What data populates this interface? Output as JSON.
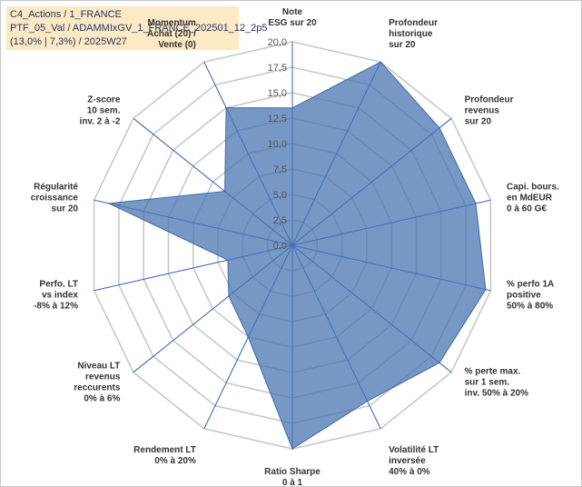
{
  "header": {
    "line1": "C4_Actions / 1_FRANCE",
    "line2": "PTF_05_Val / ADAMMIxGV_1_FRANCE_202501_12_2p5",
    "line3": "(13,0% | 7,3%) / 2025W27"
  },
  "chart_data": {
    "type": "radar",
    "title": "",
    "rmin": 0,
    "rmax": 20,
    "tick_step": 2.5,
    "tick_labels": [
      "0,0",
      "2,5",
      "5,0",
      "7,5",
      "10,0",
      "12,5",
      "15,0",
      "17,5",
      "20,0"
    ],
    "grid": true,
    "axes": [
      {
        "label": [
          "Note",
          "ESG sur 20"
        ]
      },
      {
        "label": [
          "Profondeur",
          "historique",
          "sur 20"
        ]
      },
      {
        "label": [
          "Profondeur",
          "revenus",
          "sur 20"
        ]
      },
      {
        "label": [
          "Capi. bours.",
          "en MdEUR",
          "0 à 60 G€"
        ]
      },
      {
        "label": [
          "% perfo 1A",
          "positive",
          "50% à 80%"
        ]
      },
      {
        "label": [
          "% perte max.",
          "sur 1 sem.",
          "inv. 50% à 20%"
        ]
      },
      {
        "label": [
          "Volatilité LT",
          "inversée",
          "40% à 0%"
        ]
      },
      {
        "label": [
          "Ratio Sharpe",
          "0 à 1"
        ]
      },
      {
        "label": [
          "Rendement LT",
          "0% à 20%"
        ]
      },
      {
        "label": [
          "Niveau LT",
          "revenus",
          "reccurents",
          "0% à 6%"
        ]
      },
      {
        "label": [
          "Perfo. LT",
          "vs index",
          "-8% à 12%"
        ]
      },
      {
        "label": [
          "Régularité",
          "croissance",
          "sur 20"
        ]
      },
      {
        "label": [
          "Z-score",
          "10 sem.",
          "inv. 2 à -2"
        ]
      },
      {
        "label": [
          "Momentum",
          "Achat (20) /",
          "Vente (0)"
        ]
      }
    ],
    "series": [
      {
        "values": [
          13.5,
          20.0,
          18.5,
          18.5,
          19.5,
          18.5,
          17.0,
          20.0,
          10.0,
          8.0,
          6.5,
          18.5,
          8.5,
          15.0
        ],
        "color": "#4a76b2"
      }
    ]
  }
}
